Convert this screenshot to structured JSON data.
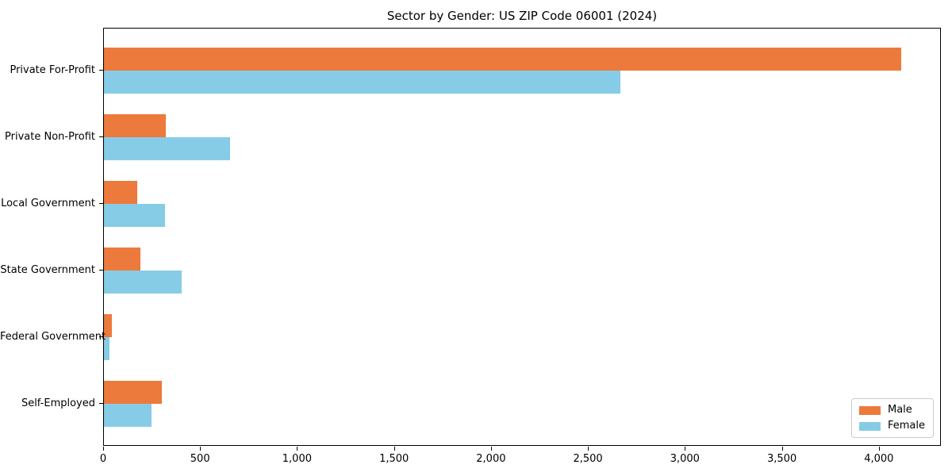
{
  "chart_data": {
    "type": "bar",
    "orientation": "horizontal",
    "title": "Sector by Gender: US ZIP Code 06001 (2024)",
    "categories": [
      "Private For-Profit",
      "Private Non-Profit",
      "Local Government",
      "State Government",
      "Federal Government",
      "Self-Employed"
    ],
    "series": [
      {
        "name": "Male",
        "color": "#ec7a3c",
        "values": [
          4110,
          320,
          170,
          190,
          40,
          300
        ]
      },
      {
        "name": "Female",
        "color": "#87cce6",
        "values": [
          2665,
          650,
          315,
          400,
          30,
          245
        ]
      }
    ],
    "xlabel": "",
    "ylabel": "",
    "xlim": [
      0,
      4320
    ],
    "xticks": [
      0,
      500,
      1000,
      1500,
      2000,
      2500,
      3000,
      3500,
      4000
    ],
    "xtick_labels": [
      "0",
      "500",
      "1,000",
      "1,500",
      "2,000",
      "2,500",
      "3,000",
      "3,500",
      "4,000"
    ],
    "grid": false,
    "legend_position": "lower right",
    "colors": {
      "male": "#ec7a3c",
      "female": "#87cce6",
      "spine": "#000000",
      "background": "#ffffff"
    }
  }
}
